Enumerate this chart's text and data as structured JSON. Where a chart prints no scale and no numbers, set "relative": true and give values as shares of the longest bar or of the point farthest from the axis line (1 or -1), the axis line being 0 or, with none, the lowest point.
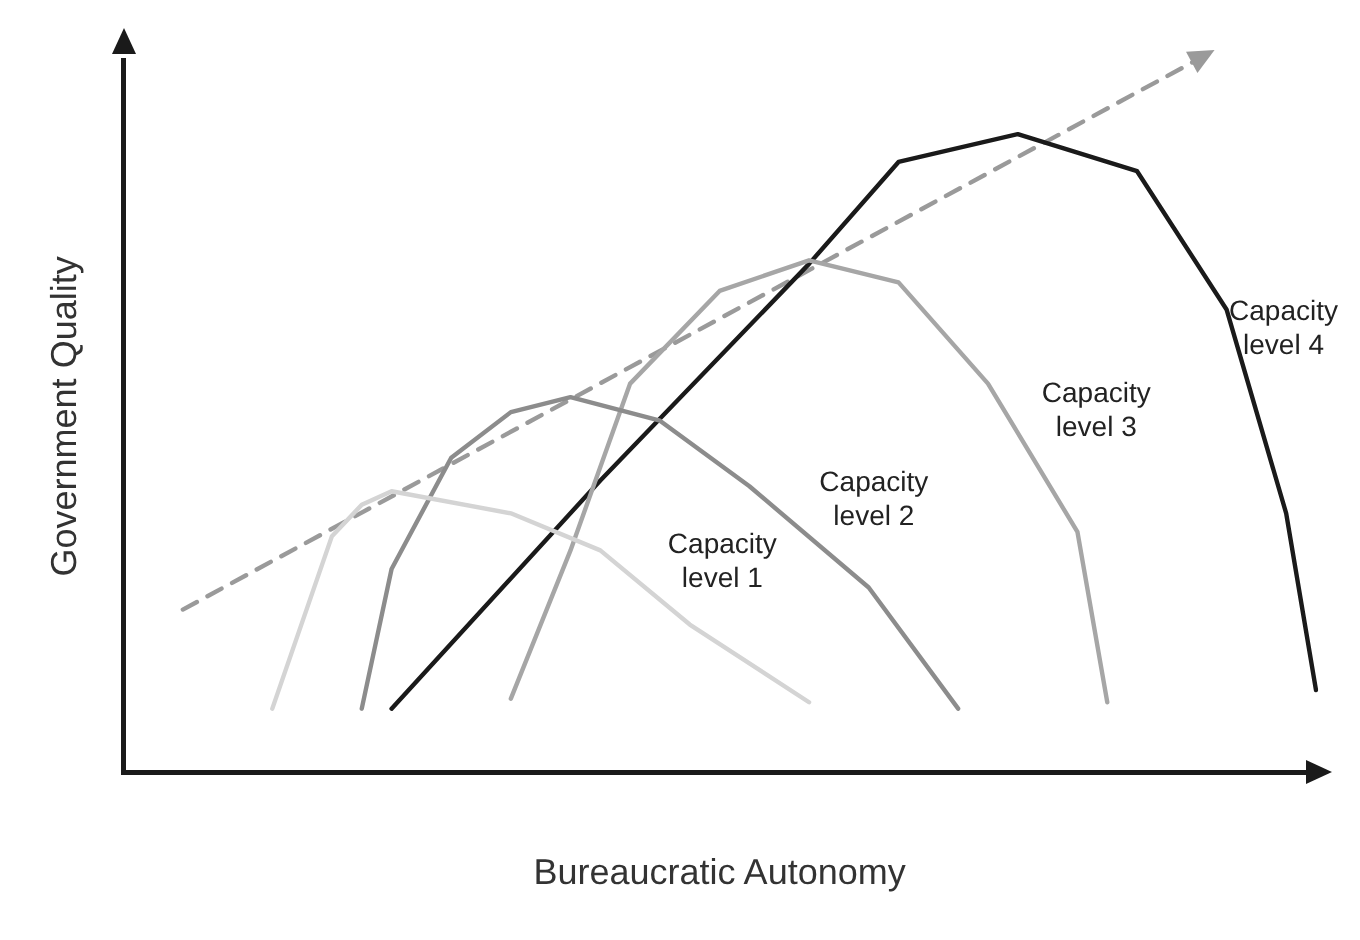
{
  "chart_data": {
    "type": "line",
    "relative": true,
    "xlabel": "Bureaucratic Autonomy",
    "ylabel": "Government Quality",
    "tick_labels": false,
    "grid": false,
    "legend": false,
    "categories": [
      null,
      null,
      null,
      null,
      null,
      null,
      null,
      null,
      null,
      null,
      null,
      null,
      null,
      null,
      null,
      null,
      null,
      null,
      null,
      null,
      null,
      null,
      null,
      null,
      null,
      null,
      null,
      null,
      null,
      null,
      null,
      null,
      null,
      null,
      null,
      null,
      null,
      null,
      null,
      null,
      null
    ],
    "series": [
      {
        "name": "Capacity level 1",
        "color": "#d4d4d4",
        "values": [
          null,
          null,
          null,
          null,
          null,
          0.09,
          null,
          0.332,
          0.376,
          0.395,
          null,
          null,
          null,
          0.364,
          null,
          null,
          0.312,
          null,
          null,
          0.208,
          null,
          null,
          null,
          0.099,
          null,
          null,
          null,
          null,
          null,
          null,
          null,
          null,
          null,
          null,
          null,
          null,
          null,
          null,
          null,
          null,
          null
        ]
      },
      {
        "name": "Capacity level 2",
        "color": "#8c8c8c",
        "values": [
          null,
          null,
          null,
          null,
          null,
          null,
          null,
          null,
          0.09,
          0.286,
          null,
          0.442,
          null,
          0.506,
          null,
          0.527,
          null,
          null,
          0.494,
          null,
          null,
          0.402,
          null,
          null,
          null,
          0.26,
          null,
          null,
          0.09,
          null,
          null,
          null,
          null,
          null,
          null,
          null,
          null,
          null,
          null,
          null,
          null
        ]
      },
      {
        "name": "Capacity level 3",
        "color": "#a6a6a6",
        "values": [
          null,
          null,
          null,
          null,
          null,
          null,
          null,
          null,
          null,
          null,
          null,
          null,
          null,
          0.104,
          null,
          0.312,
          null,
          0.546,
          null,
          null,
          0.676,
          null,
          null,
          0.719,
          null,
          null,
          0.688,
          null,
          null,
          0.546,
          null,
          null,
          0.338,
          0.099,
          null,
          null,
          null,
          null,
          null,
          null,
          null
        ]
      },
      {
        "name": "Capacity level 4",
        "color": "#1a1a1a",
        "values": [
          null,
          null,
          null,
          null,
          null,
          null,
          null,
          null,
          null,
          0.09,
          null,
          null,
          null,
          null,
          null,
          null,
          0.41,
          null,
          null,
          null,
          null,
          null,
          null,
          0.714,
          null,
          null,
          0.857,
          null,
          null,
          null,
          0.896,
          null,
          null,
          null,
          0.844,
          null,
          null,
          0.65,
          null,
          0.364,
          0.116
        ]
      },
      {
        "color": "#9a9a9a",
        "line_style": "dashed",
        "values": [
          null,
          null,
          0.229,
          null,
          null,
          null,
          null,
          null,
          null,
          null,
          null,
          null,
          null,
          null,
          null,
          null,
          null,
          null,
          null,
          null,
          null,
          null,
          null,
          null,
          null,
          null,
          null,
          null,
          null,
          null,
          null,
          null,
          null,
          null,
          null,
          null,
          1.0,
          null,
          null,
          null,
          null
        ]
      }
    ]
  }
}
